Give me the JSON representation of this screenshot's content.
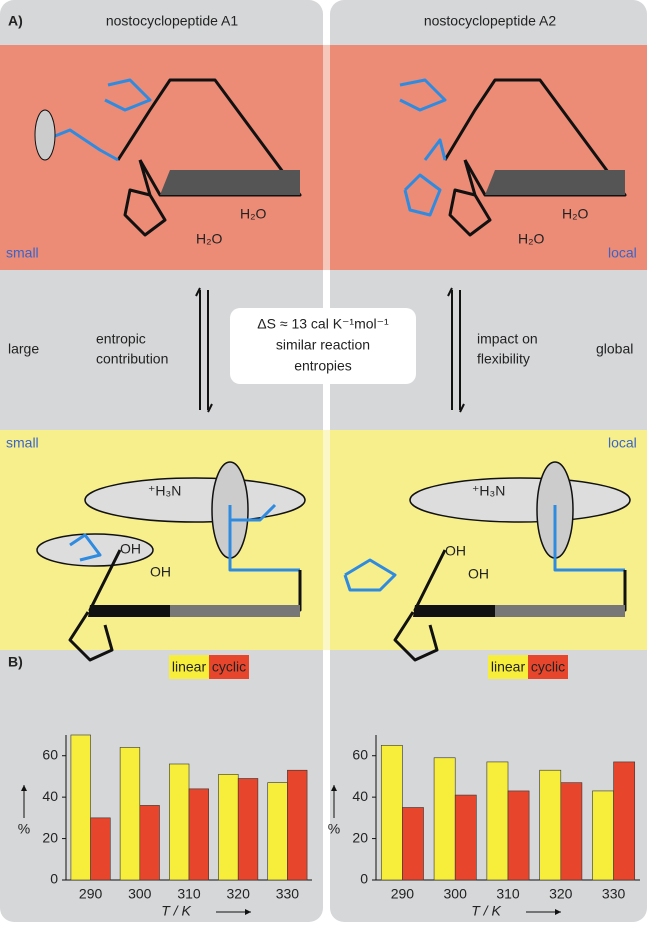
{
  "figure": {
    "panel_a": "A)",
    "panel_b": "B)",
    "titles": [
      "nostocyclopeptide A1",
      "nostocyclopeptide A2"
    ],
    "top_left_tag": "small",
    "top_right_tag": "local",
    "water": [
      "H₂O",
      "H₂O",
      "H₂O",
      "H₂O"
    ],
    "ammonium": [
      "⁺H₃N",
      "⁺H₃N"
    ],
    "hydroxyl": [
      "OH",
      "OH",
      "OH",
      "OH"
    ],
    "middle_left": "large",
    "middle_left_desc": [
      "entropic",
      "contribution"
    ],
    "box": [
      "ΔS ≈ 13 cal K⁻¹mol⁻¹",
      "similar reaction",
      "entropies"
    ],
    "middle_right_desc": [
      "impact on",
      "flexibility"
    ],
    "middle_right": "global",
    "bottom_left_tag": "small",
    "bottom_right_tag": "local"
  },
  "chart_data": [
    {
      "type": "bar",
      "categories": [
        "290",
        "300",
        "310",
        "320",
        "330"
      ],
      "series": [
        {
          "name": "linear",
          "color": "#f7ee3c",
          "values": [
            70,
            64,
            56,
            51,
            47
          ]
        },
        {
          "name": "cyclic",
          "color": "#e8462c",
          "values": [
            30,
            36,
            44,
            49,
            53
          ]
        }
      ],
      "x_label": "T / K",
      "y_label": "%",
      "ylim": [
        0,
        70
      ],
      "yticks": [
        0,
        20,
        40,
        60
      ]
    },
    {
      "type": "bar",
      "categories": [
        "290",
        "300",
        "310",
        "320",
        "330"
      ],
      "series": [
        {
          "name": "linear",
          "color": "#f7ee3c",
          "values": [
            65,
            59,
            57,
            53,
            43
          ]
        },
        {
          "name": "cyclic",
          "color": "#e8462c",
          "values": [
            35,
            41,
            43,
            47,
            57
          ]
        }
      ],
      "x_label": "T / K",
      "y_label": "%",
      "ylim": [
        0,
        70
      ],
      "yticks": [
        0,
        20,
        40,
        60
      ]
    }
  ]
}
